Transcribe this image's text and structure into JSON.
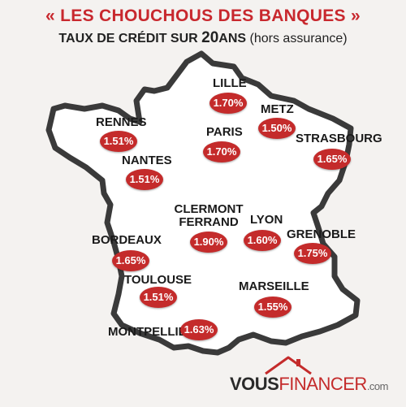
{
  "header": {
    "title": "« LES CHOUCHOUS DES BANQUES »",
    "subtitle_prefix": "TAUX DE CRÉDIT SUR ",
    "subtitle_years": "20",
    "subtitle_ans": "ANS",
    "subtitle_suffix": "(hors assurance)"
  },
  "cities": [
    {
      "name": "LILLE",
      "rate": "1.70%"
    },
    {
      "name": "METZ",
      "rate": "1.50%"
    },
    {
      "name": "RENNES",
      "rate": "1.51%"
    },
    {
      "name": "PARIS",
      "rate": "1.70%"
    },
    {
      "name": "STRASBOURG",
      "rate": "1.65%"
    },
    {
      "name": "NANTES",
      "rate": "1.51%"
    },
    {
      "name": "CLERMONT",
      "name2": "FERRAND",
      "rate": "1.90%"
    },
    {
      "name": "LYON",
      "rate": "1.60%"
    },
    {
      "name": "GRENOBLE",
      "rate": "1.75%"
    },
    {
      "name": "BORDEAUX",
      "rate": "1.65%"
    },
    {
      "name": "TOULOUSE",
      "rate": "1.51%"
    },
    {
      "name": "MARSEILLE",
      "rate": "1.55%"
    },
    {
      "name": "MONTPELLIER",
      "rate": "1.63%"
    }
  ],
  "logo": {
    "part1": "VOUS",
    "part2": "FINANCER",
    "part3": ".com"
  },
  "colors": {
    "accent": "#c42b2b",
    "title": "#c8282e",
    "background": "#f4f2f0"
  }
}
